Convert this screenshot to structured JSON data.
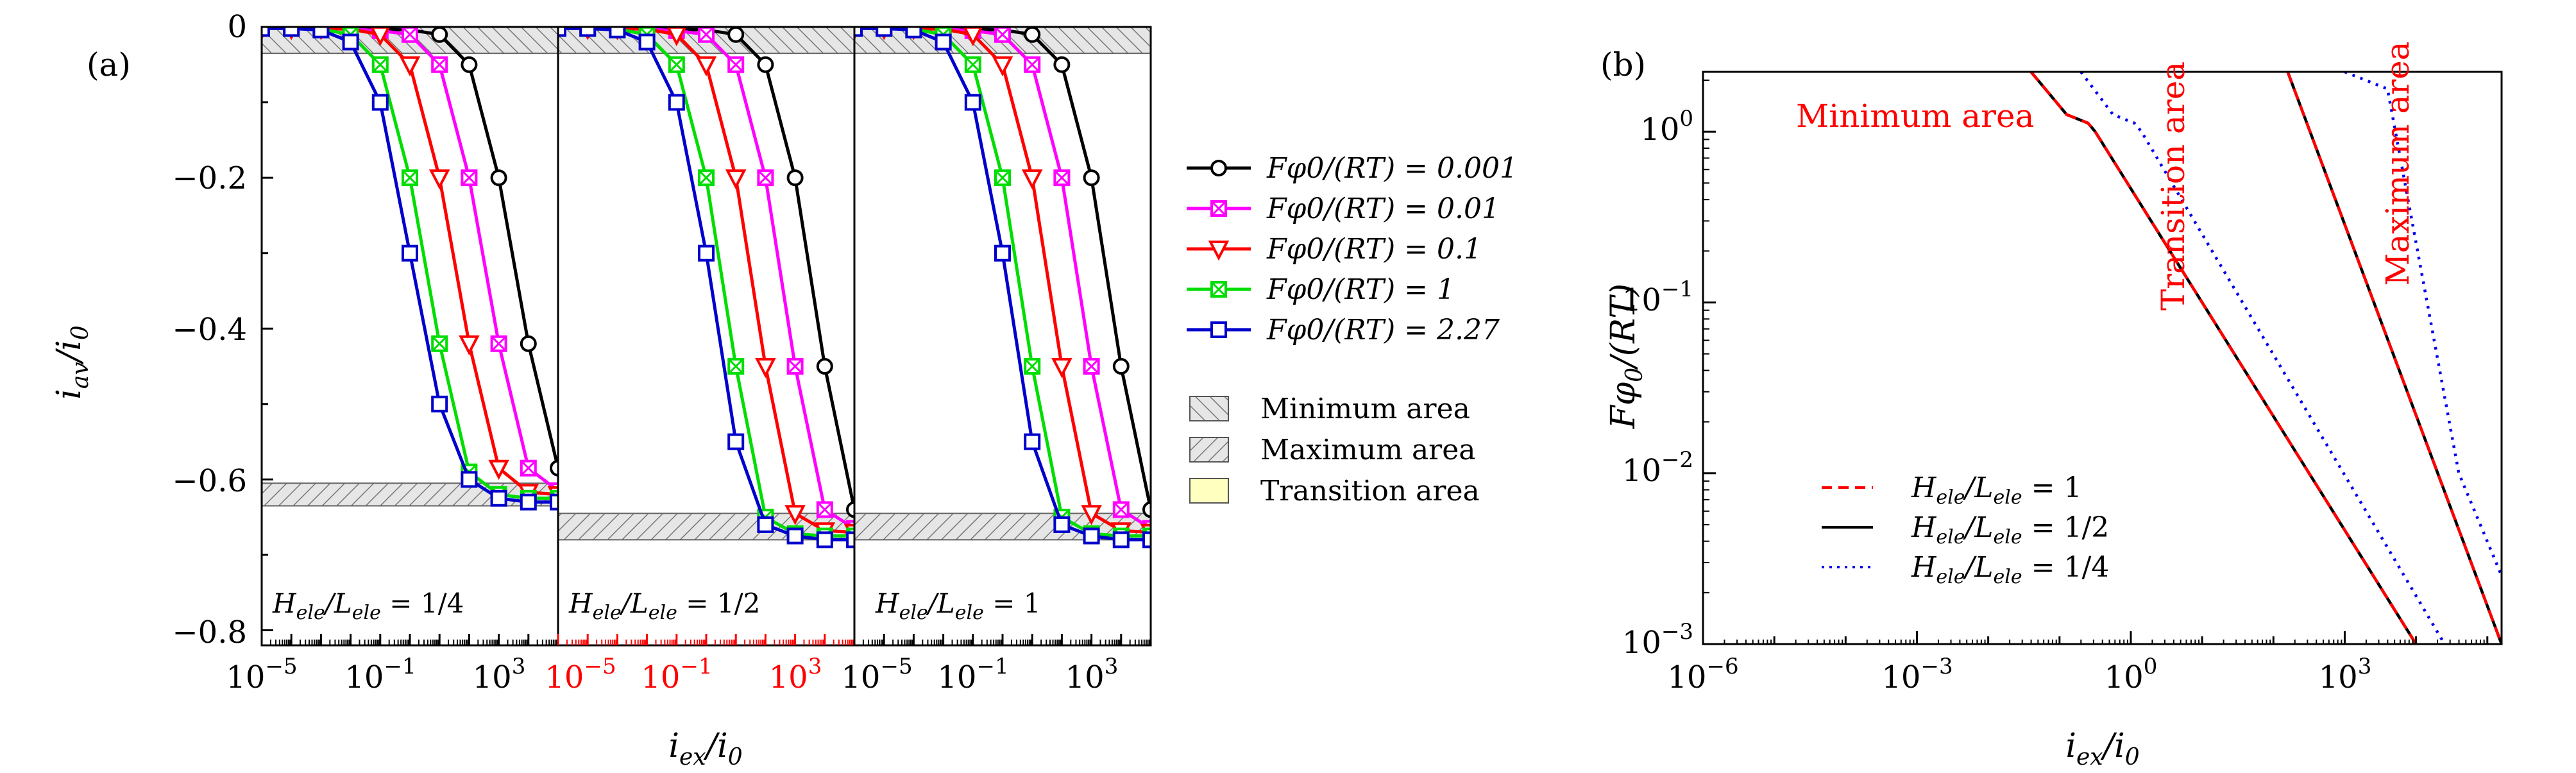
{
  "panel_a": {
    "label": "(a)",
    "ylabel": "i_av/i_0",
    "xlabel": "i_ex/i_0",
    "y_ticks": [
      "0",
      "−0.2",
      "−0.4",
      "−0.6",
      "−0.8"
    ],
    "x_ticks": [
      [
        "10",
        "−5"
      ],
      [
        "10",
        "−1"
      ],
      [
        "10",
        "3"
      ]
    ],
    "sub_labels": [
      "H_ele/L_ele = 1/4",
      "H_ele/L_ele = 1/2",
      "H_ele/L_ele = 1"
    ],
    "area_labels": [
      "Minimum area",
      "Maximum area",
      "Transition area"
    ]
  },
  "panel_b": {
    "label": "(b)",
    "ylabel": "Fφ0/(RT)",
    "xlabel": "i_ex/i_0",
    "x_ticks": [
      [
        "10",
        "−6"
      ],
      [
        "10",
        "−3"
      ],
      [
        "10",
        "0"
      ],
      [
        "10",
        "3"
      ]
    ],
    "y_ticks": [
      [
        "10",
        "0"
      ],
      [
        "10",
        "−1"
      ],
      [
        "10",
        "−2"
      ],
      [
        "10",
        "−3"
      ]
    ],
    "region_labels": [
      "Minimum area",
      "Transition area",
      "Maximum area"
    ]
  },
  "chart_data": [
    {
      "type": "line",
      "title": "",
      "xlabel": "i_ex/i_0",
      "ylabel": "i_av/i_0",
      "x_scale": "log",
      "ylim": [
        -0.82,
        0
      ],
      "legend": "right of plot",
      "series_legend": [
        {
          "name": "Fφ0/(RT) = 0.001",
          "color": "#000000",
          "marker": "circle"
        },
        {
          "name": "Fφ0/(RT) = 0.01",
          "color": "#ff00ff",
          "marker": "boxed-x"
        },
        {
          "name": "Fφ0/(RT) = 0.1",
          "color": "#ff0000",
          "marker": "triangle-down"
        },
        {
          "name": "Fφ0/(RT) = 1",
          "color": "#00dd00",
          "marker": "boxed-x"
        },
        {
          "name": "Fφ0/(RT) = 2.27",
          "color": "#0000cc",
          "marker": "square"
        }
      ],
      "subplots": [
        {
          "label": "H_ele/L_ele = 1/4",
          "xlim_exp": [
            -5,
            5
          ],
          "min_area": [
            -0.035,
            0
          ],
          "max_area": [
            -0.635,
            -0.605
          ],
          "transition_area": [
            -0.605,
            -0.035
          ],
          "series": [
            {
              "name": "Fφ0/(RT) = 0.001",
              "x_exp": [
                -5,
                -4,
                -3,
                -2,
                -1,
                0,
                1,
                2,
                3,
                4,
                5
              ],
              "y": [
                -0.002,
                -0.002,
                -0.002,
                -0.002,
                -0.003,
                -0.004,
                -0.01,
                -0.05,
                -0.2,
                -0.42,
                -0.585
              ]
            },
            {
              "name": "Fφ0/(RT) = 0.01",
              "x_exp": [
                -5,
                -4,
                -3,
                -2,
                -1,
                0,
                1,
                2,
                3,
                4,
                5
              ],
              "y": [
                -0.002,
                -0.002,
                -0.002,
                -0.003,
                -0.005,
                -0.01,
                -0.05,
                -0.2,
                -0.42,
                -0.585,
                -0.615
              ]
            },
            {
              "name": "Fφ0/(RT) = 0.1",
              "x_exp": [
                -5,
                -4,
                -3,
                -2,
                -1,
                0,
                1,
                2,
                3,
                4,
                5
              ],
              "y": [
                -0.002,
                -0.002,
                -0.002,
                -0.003,
                -0.01,
                -0.05,
                -0.2,
                -0.42,
                -0.585,
                -0.617,
                -0.62
              ]
            },
            {
              "name": "Fφ0/(RT) = 1",
              "x_exp": [
                -5,
                -4,
                -3,
                -2,
                -1,
                0,
                1,
                2,
                3,
                4,
                5
              ],
              "y": [
                -0.002,
                -0.002,
                -0.003,
                -0.01,
                -0.05,
                -0.2,
                -0.42,
                -0.59,
                -0.62,
                -0.625,
                -0.625
              ]
            },
            {
              "name": "Fφ0/(RT) = 2.27",
              "x_exp": [
                -5,
                -4,
                -3,
                -2,
                -1,
                0,
                1,
                2,
                3,
                4,
                5
              ],
              "y": [
                -0.002,
                -0.002,
                -0.004,
                -0.02,
                -0.1,
                -0.3,
                -0.5,
                -0.6,
                -0.625,
                -0.63,
                -0.63
              ]
            }
          ]
        },
        {
          "label": "H_ele/L_ele = 1/2",
          "xlim_exp": [
            -5,
            5
          ],
          "min_area": [
            -0.035,
            0
          ],
          "max_area": [
            -0.68,
            -0.645
          ],
          "transition_area": [
            -0.645,
            -0.035
          ],
          "series": [
            {
              "name": "Fφ0/(RT) = 0.001",
              "x_exp": [
                -5,
                -4,
                -3,
                -2,
                -1,
                0,
                1,
                2,
                3,
                4,
                5
              ],
              "y": [
                -0.002,
                -0.002,
                -0.002,
                -0.002,
                -0.003,
                -0.004,
                -0.01,
                -0.05,
                -0.2,
                -0.45,
                -0.64
              ]
            },
            {
              "name": "Fφ0/(RT) = 0.01",
              "x_exp": [
                -5,
                -4,
                -3,
                -2,
                -1,
                0,
                1,
                2,
                3,
                4,
                5
              ],
              "y": [
                -0.002,
                -0.002,
                -0.002,
                -0.003,
                -0.005,
                -0.01,
                -0.05,
                -0.2,
                -0.45,
                -0.64,
                -0.665
              ]
            },
            {
              "name": "Fφ0/(RT) = 0.1",
              "x_exp": [
                -5,
                -4,
                -3,
                -2,
                -1,
                0,
                1,
                2,
                3,
                4,
                5
              ],
              "y": [
                -0.002,
                -0.002,
                -0.002,
                -0.003,
                -0.01,
                -0.05,
                -0.2,
                -0.45,
                -0.645,
                -0.668,
                -0.67
              ]
            },
            {
              "name": "Fφ0/(RT) = 1",
              "x_exp": [
                -5,
                -4,
                -3,
                -2,
                -1,
                0,
                1,
                2,
                3,
                4,
                5
              ],
              "y": [
                -0.002,
                -0.002,
                -0.003,
                -0.01,
                -0.05,
                -0.2,
                -0.45,
                -0.65,
                -0.672,
                -0.675,
                -0.675
              ]
            },
            {
              "name": "Fφ0/(RT) = 2.27",
              "x_exp": [
                -5,
                -4,
                -3,
                -2,
                -1,
                0,
                1,
                2,
                3,
                4,
                5
              ],
              "y": [
                -0.002,
                -0.002,
                -0.004,
                -0.02,
                -0.1,
                -0.3,
                -0.55,
                -0.66,
                -0.675,
                -0.68,
                -0.68
              ]
            }
          ]
        },
        {
          "label": "H_ele/L_ele = 1",
          "xlim_exp": [
            -5,
            5
          ],
          "min_area": [
            -0.035,
            0
          ],
          "max_area": [
            -0.68,
            -0.645
          ],
          "transition_area": [
            -0.645,
            -0.035
          ],
          "series": [
            {
              "name": "Fφ0/(RT) = 0.001",
              "x_exp": [
                -5,
                -4,
                -3,
                -2,
                -1,
                0,
                1,
                2,
                3,
                4,
                5
              ],
              "y": [
                -0.002,
                -0.002,
                -0.002,
                -0.002,
                -0.003,
                -0.004,
                -0.01,
                -0.05,
                -0.2,
                -0.45,
                -0.64
              ]
            },
            {
              "name": "Fφ0/(RT) = 0.01",
              "x_exp": [
                -5,
                -4,
                -3,
                -2,
                -1,
                0,
                1,
                2,
                3,
                4,
                5
              ],
              "y": [
                -0.002,
                -0.002,
                -0.002,
                -0.003,
                -0.005,
                -0.01,
                -0.05,
                -0.2,
                -0.45,
                -0.64,
                -0.665
              ]
            },
            {
              "name": "Fφ0/(RT) = 0.1",
              "x_exp": [
                -5,
                -4,
                -3,
                -2,
                -1,
                0,
                1,
                2,
                3,
                4,
                5
              ],
              "y": [
                -0.002,
                -0.002,
                -0.002,
                -0.003,
                -0.01,
                -0.05,
                -0.2,
                -0.45,
                -0.645,
                -0.668,
                -0.67
              ]
            },
            {
              "name": "Fφ0/(RT) = 1",
              "x_exp": [
                -5,
                -4,
                -3,
                -2,
                -1,
                0,
                1,
                2,
                3,
                4,
                5
              ],
              "y": [
                -0.002,
                -0.002,
                -0.003,
                -0.01,
                -0.05,
                -0.2,
                -0.45,
                -0.65,
                -0.672,
                -0.675,
                -0.675
              ]
            },
            {
              "name": "Fφ0/(RT) = 2.27",
              "x_exp": [
                -5,
                -4,
                -3,
                -2,
                -1,
                0,
                1,
                2,
                3,
                4,
                5
              ],
              "y": [
                -0.002,
                -0.002,
                -0.004,
                -0.02,
                -0.1,
                -0.3,
                -0.55,
                -0.66,
                -0.675,
                -0.68,
                -0.68
              ]
            }
          ]
        }
      ]
    },
    {
      "type": "line",
      "title": "",
      "xlabel": "i_ex/i_0",
      "ylabel": "Fφ0/(RT)",
      "x_scale": "log",
      "y_scale": "log",
      "xlim_exp": [
        -6,
        5.2
      ],
      "ylim_exp": [
        -3,
        0.35
      ],
      "legend": "bottom-left",
      "series": [
        {
          "name": "H_ele/L_ele = 1",
          "color": "#ff0000",
          "dash": "dashed",
          "branches": [
            {
              "x_exp": [
                -1.4,
                -0.9,
                -0.6,
                -0.5,
                4.0
              ],
              "y_exp": [
                0.35,
                0.1,
                0.05,
                0.0,
                -3.0
              ]
            },
            {
              "x_exp": [
                2.2,
                5.2
              ],
              "y_exp": [
                0.35,
                -3.0
              ]
            }
          ]
        },
        {
          "name": "H_ele/L_ele = 1/2",
          "color": "#000000",
          "dash": "solid",
          "branches": [
            {
              "x_exp": [
                -1.4,
                -0.9,
                -0.6,
                -0.5,
                4.0
              ],
              "y_exp": [
                0.35,
                0.1,
                0.05,
                0.0,
                -3.0
              ]
            },
            {
              "x_exp": [
                2.2,
                5.2
              ],
              "y_exp": [
                0.35,
                -3.0
              ]
            }
          ]
        },
        {
          "name": "H_ele/L_ele = 1/4",
          "color": "#0000ee",
          "dash": "dotted",
          "branches": [
            {
              "x_exp": [
                -0.7,
                -0.25,
                0.05,
                0.15,
                4.4
              ],
              "y_exp": [
                0.35,
                0.1,
                0.05,
                0.0,
                -3.0
              ]
            },
            {
              "x_exp": [
                3.0,
                3.6,
                4.6,
                5.2
              ],
              "y_exp": [
                0.35,
                0.25,
                -2.0,
                -2.6
              ]
            }
          ]
        }
      ]
    }
  ]
}
